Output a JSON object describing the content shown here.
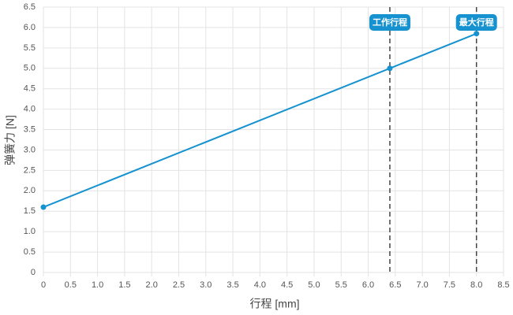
{
  "chart_data": {
    "type": "line",
    "x_label": "行程 [mm]",
    "y_label": "弹簧力 [N]",
    "series": [
      {
        "name": "弹簧力",
        "color": "#1592cf",
        "x": [
          0,
          6.4,
          8.0
        ],
        "values": [
          1.6,
          5.0,
          5.85
        ]
      }
    ],
    "annotations": [
      {
        "x": 6.4,
        "label": "工作行程"
      },
      {
        "x": 8.0,
        "label": "最大行程"
      }
    ],
    "xlim": [
      0,
      8.5
    ],
    "ylim": [
      0,
      6.5
    ],
    "xticks": [
      0,
      0.5,
      {
        "value": 1,
        "label": "1.0"
      },
      1.5,
      {
        "value": 2,
        "label": "2.0"
      },
      2.5,
      {
        "value": 3,
        "label": "3.0"
      },
      3.5,
      {
        "value": 4,
        "label": "4.0"
      },
      4.5,
      {
        "value": 5,
        "label": "5.0"
      },
      5.5,
      {
        "value": 6,
        "label": "6.0"
      },
      6.5,
      {
        "value": 7,
        "label": "7.0"
      },
      7.5,
      {
        "value": 8,
        "label": "8.0"
      },
      8.5
    ],
    "yticks": [
      0,
      0.5,
      {
        "value": 1,
        "label": "1.0"
      },
      1.5,
      {
        "value": 2,
        "label": "2.0"
      },
      2.5,
      {
        "value": 3,
        "label": "3.0"
      },
      3.5,
      {
        "value": 4,
        "label": "4.0"
      },
      4.5,
      {
        "value": 5,
        "label": "5.0"
      },
      5.5,
      {
        "value": 6,
        "label": "6.0"
      },
      6.5
    ],
    "grid": true
  }
}
